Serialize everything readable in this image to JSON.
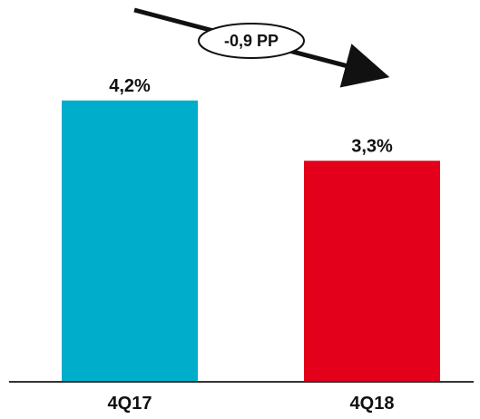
{
  "chart_data": {
    "type": "bar",
    "categories": [
      "4Q17",
      "4Q18"
    ],
    "values": [
      4.2,
      3.3
    ],
    "value_labels": [
      "4,2%",
      "3,3%"
    ],
    "colors": [
      "#00AECB",
      "#E2001A"
    ],
    "ylim": [
      0,
      5.7
    ],
    "grid": false,
    "legend": "none",
    "annotation": {
      "text": "-0,9 PP",
      "style": "arrow-down-right"
    }
  }
}
